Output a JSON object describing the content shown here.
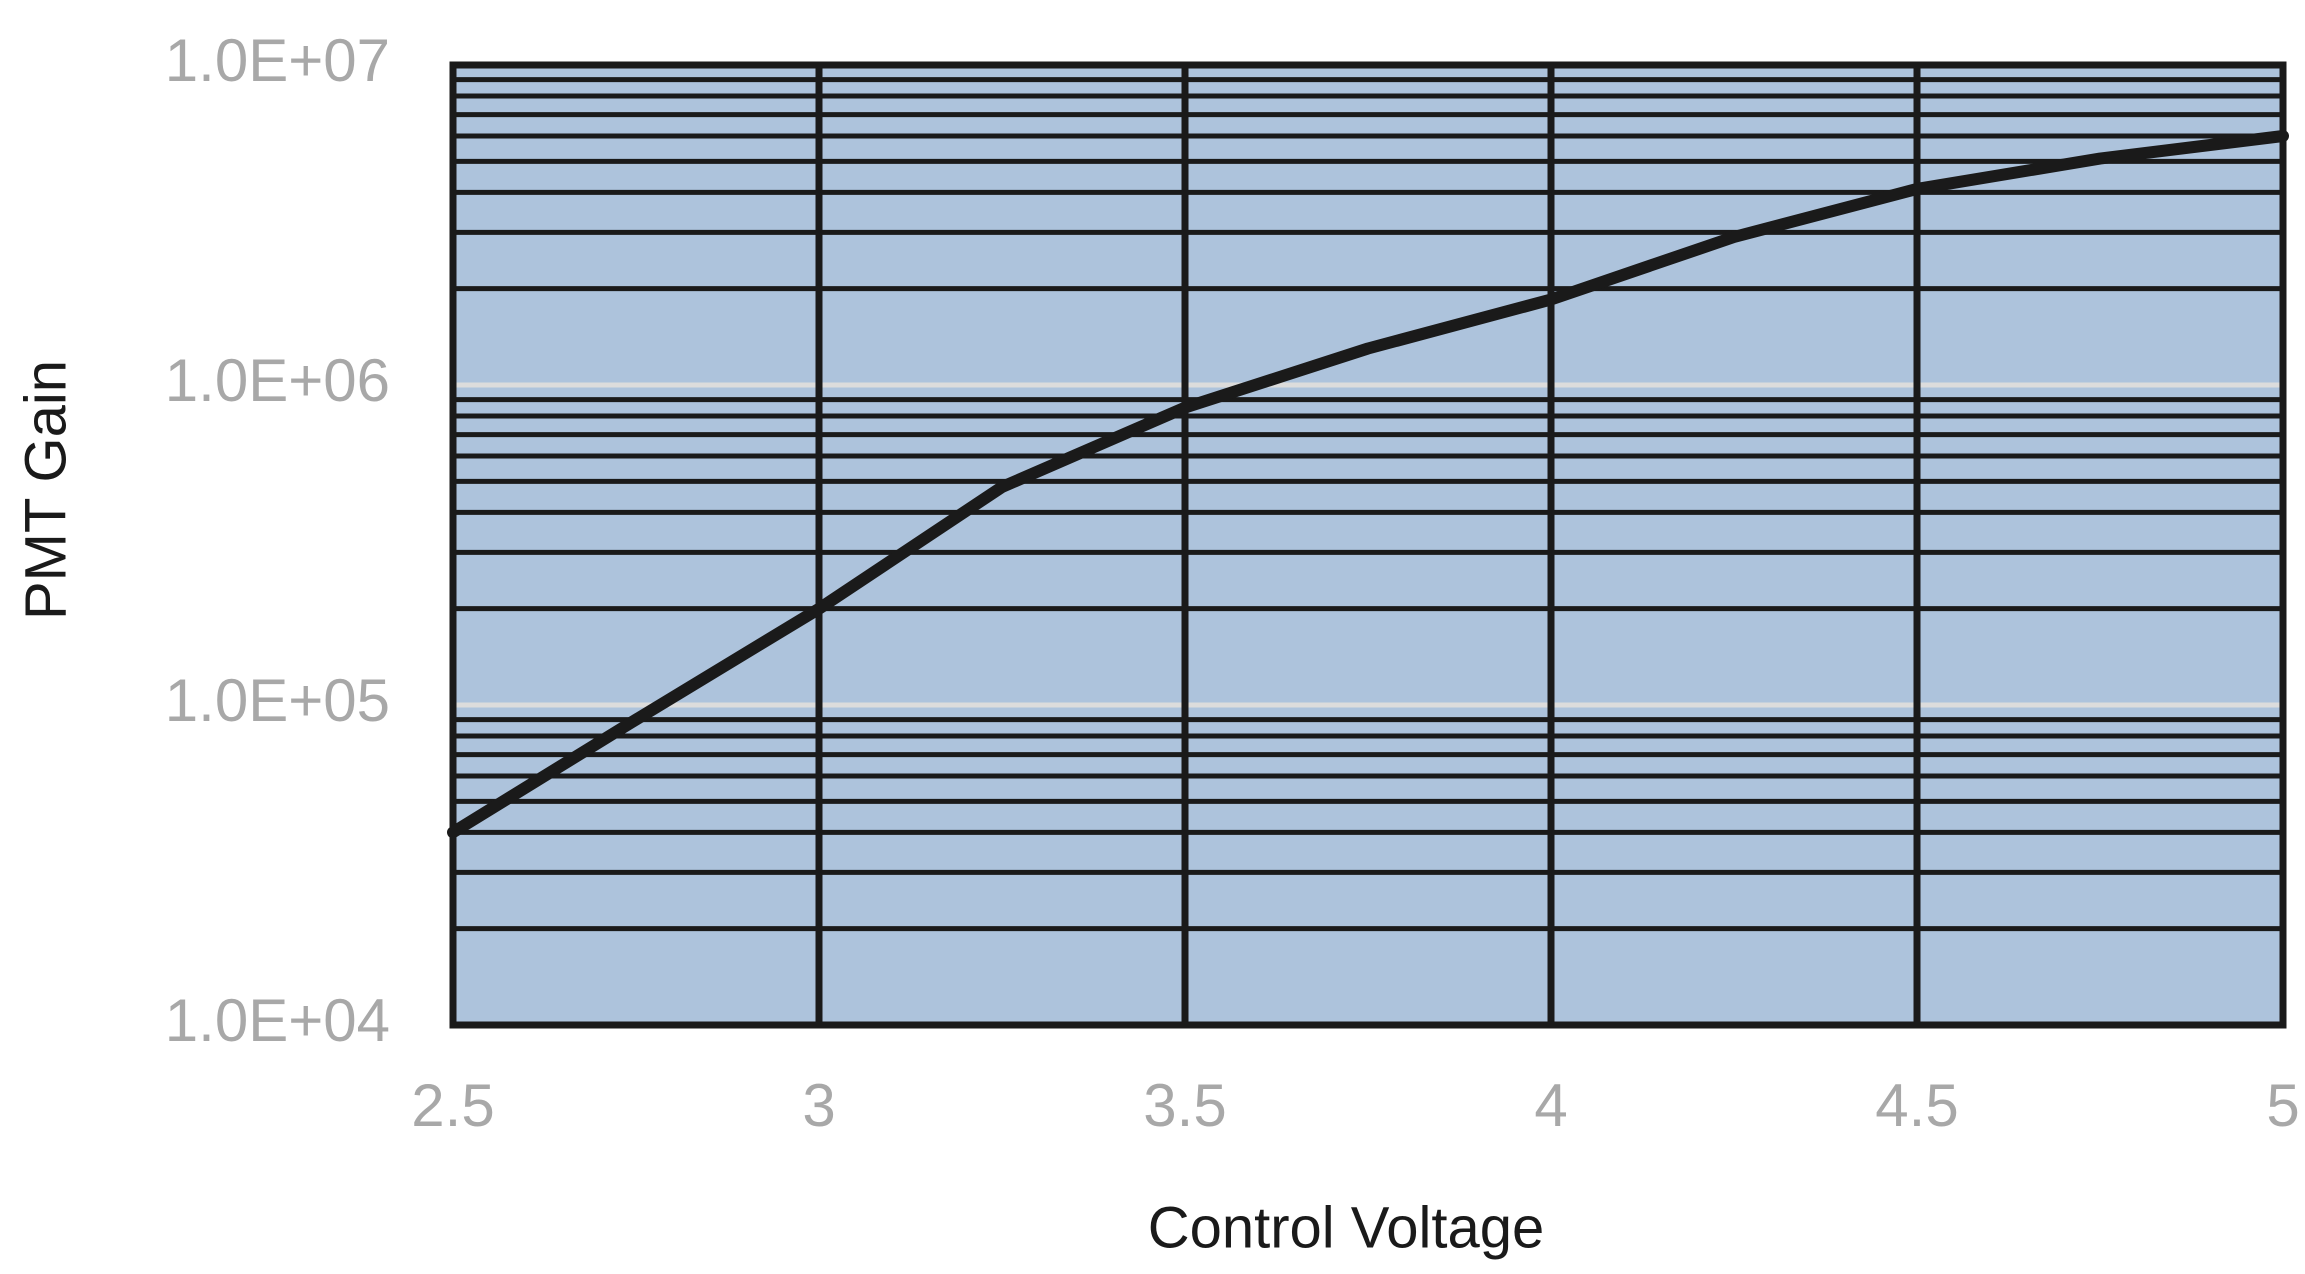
{
  "chart_data": {
    "type": "line",
    "x_label": "Control Voltage",
    "y_label": "PMT Gain",
    "x": [
      2.5,
      2.75,
      3,
      3.25,
      3.5,
      3.75,
      4,
      4.25,
      4.5,
      4.75,
      5
    ],
    "values": [
      40000,
      90000,
      200000,
      480000,
      850000,
      1300000,
      1850000,
      2900000,
      4100000,
      5100000,
      6000000
    ],
    "color": "#1a1a1a",
    "xlim": [
      2.5,
      5
    ],
    "xticks": [
      2.5,
      3,
      3.5,
      4,
      4.5,
      5
    ],
    "ylim": [
      10000,
      10000000
    ],
    "y_scale": "log",
    "yticks": [
      {
        "value": 10000,
        "label": "1.0E+04"
      },
      {
        "value": 100000,
        "label": "1.0E+05"
      },
      {
        "value": 1000000,
        "label": "1.0E+06"
      },
      {
        "value": 10000000,
        "label": "1.0E+07"
      }
    ],
    "minor_yticks": [
      20000,
      30000,
      40000,
      50000,
      60000,
      70000,
      80000,
      90000,
      200000,
      300000,
      400000,
      500000,
      600000,
      700000,
      800000,
      900000,
      2000000,
      3000000,
      4000000,
      5000000,
      6000000,
      7000000,
      8000000,
      9000000
    ],
    "grid": true,
    "plot_background": "#adc3dc"
  }
}
